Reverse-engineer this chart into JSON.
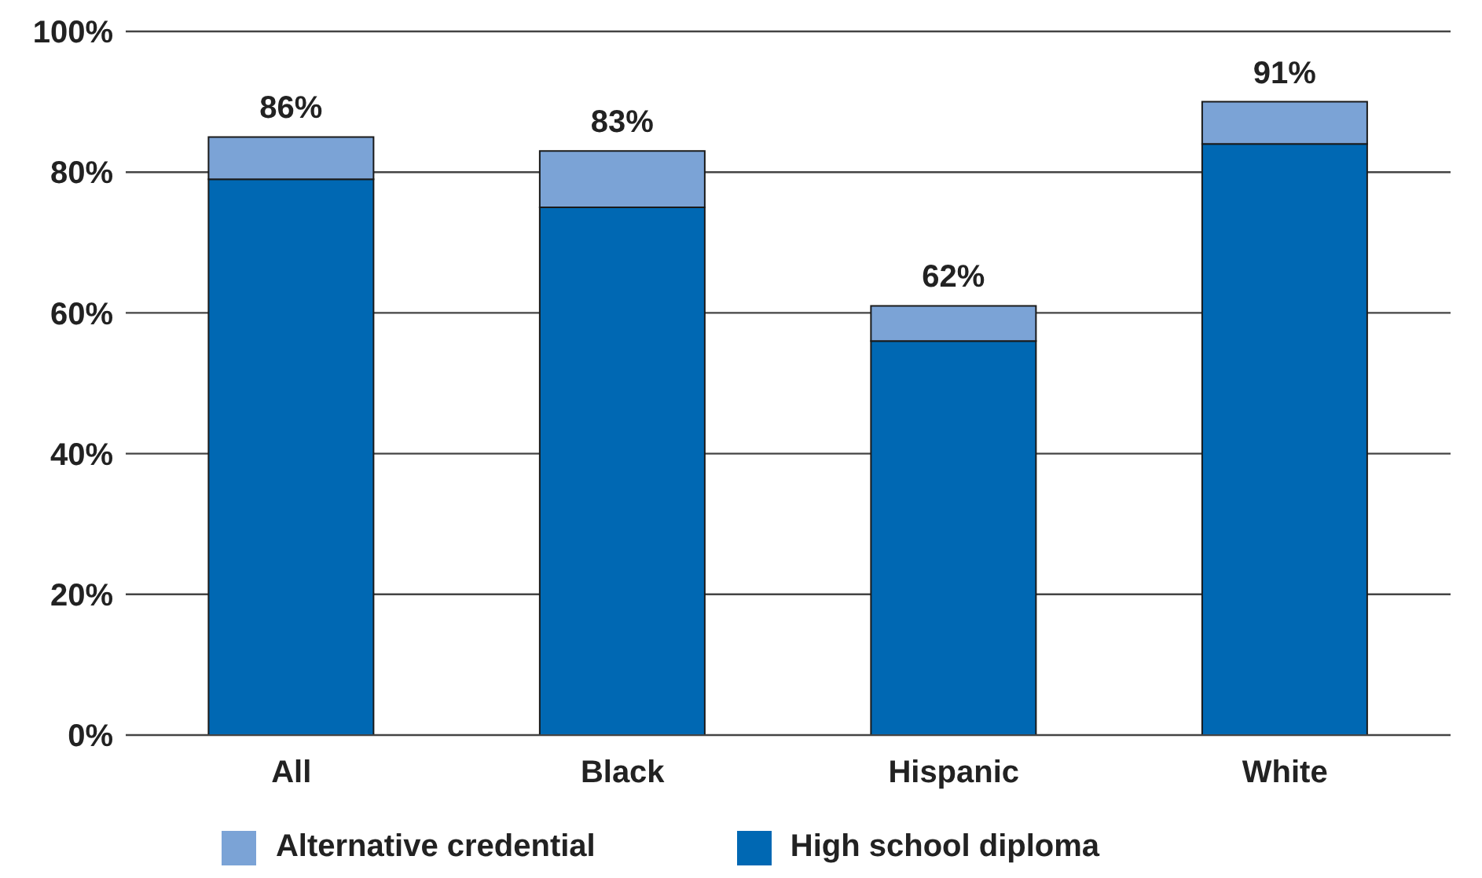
{
  "chart_data": {
    "type": "bar",
    "stacked": true,
    "categories": [
      "All",
      "Black",
      "Hispanic",
      "White"
    ],
    "series": [
      {
        "name": "High school diploma",
        "color": "#0068b3",
        "values": [
          79,
          75,
          56,
          84
        ]
      },
      {
        "name": "Alternative credential",
        "color": "#7ba3d6",
        "values": [
          6,
          8,
          5,
          6
        ]
      }
    ],
    "totals": [
      "86%",
      "83%",
      "62%",
      "91%"
    ],
    "ylim": [
      0,
      100
    ],
    "yticks": [
      {
        "value": 0,
        "label": "0%"
      },
      {
        "value": 20,
        "label": "20%"
      },
      {
        "value": 40,
        "label": "40%"
      },
      {
        "value": 60,
        "label": "60%"
      },
      {
        "value": 80,
        "label": "80%"
      },
      {
        "value": 100,
        "label": "100%"
      }
    ],
    "grid": "y",
    "legend": "bottom"
  }
}
